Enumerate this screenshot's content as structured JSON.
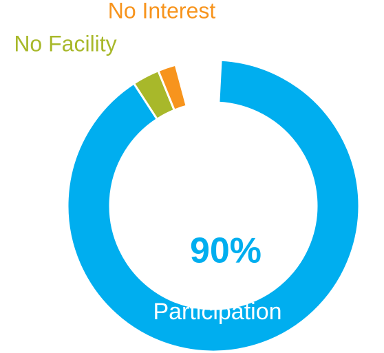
{
  "chart_data": {
    "type": "donut",
    "categories": [
      "Participation",
      "No Facility",
      "No Interest"
    ],
    "values": [
      90,
      3,
      2
    ],
    "value_labels": [
      "90%",
      null,
      null
    ],
    "colors": [
      "#00aeef",
      "#a8b82a",
      "#f7941d"
    ]
  }
}
